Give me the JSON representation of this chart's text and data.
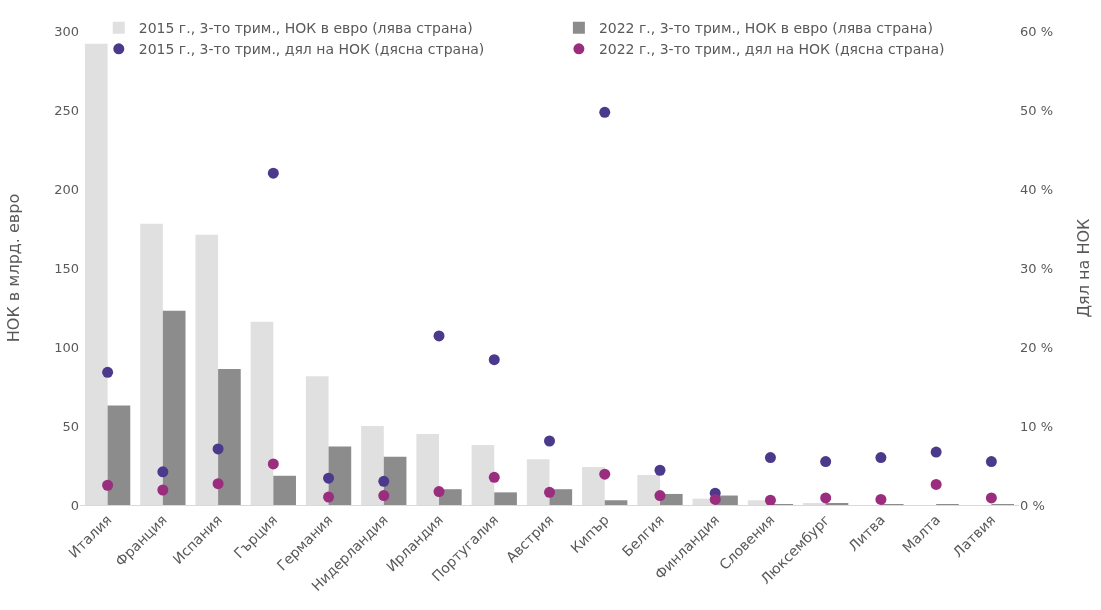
{
  "chart_data": {
    "type": "bar",
    "ylabel": "НОК в млрд. евро",
    "y2label": "Дял на НОК",
    "categories": [
      "Италия",
      "Франция",
      "Испания",
      "Гърция",
      "Германия",
      "Нидерландия",
      "Ирландия",
      "Португалия",
      "Австрия",
      "Кипър",
      "Белгия",
      "Финландия",
      "Словения",
      "Люксембург",
      "Литва",
      "Малта",
      "Латвия"
    ],
    "series": [
      {
        "name": "2015 г., 3-то трим., НОК в евро (лява страна)",
        "color": "#e0e0e0",
        "values": [
          292,
          178,
          171,
          116,
          81.5,
          50,
          45,
          38,
          29,
          24,
          19,
          4,
          3,
          1,
          null,
          null,
          null
        ]
      },
      {
        "name": "2022 г., 3-то трим., НОК в евро (лява страна)",
        "color": "#8c8c8c",
        "values": [
          63,
          123,
          86,
          18.5,
          37,
          30.5,
          10,
          8,
          10,
          3,
          7,
          6,
          0.5,
          1,
          0.2,
          0.5,
          0.2
        ]
      },
      {
        "name": "2015 г., 3-то трим., дял на НОК (дясна страна)",
        "type": "scatter",
        "axis": "y2",
        "color": "#4b3a8c",
        "values": [
          16.8,
          4.2,
          7.1,
          42,
          3.4,
          3,
          21.4,
          18.4,
          8.1,
          49.7,
          4.4,
          1.5,
          6,
          5.5,
          6,
          6.7,
          5.5
        ]
      },
      {
        "name": "2022 г., 3-то трим., дял на НОК (дясна страна)",
        "type": "scatter",
        "axis": "y2",
        "color": "#9b2d7f",
        "values": [
          2.5,
          1.9,
          2.7,
          5.2,
          1,
          1.2,
          1.7,
          3.5,
          1.6,
          3.9,
          1.2,
          0.7,
          0.6,
          0.9,
          0.7,
          2.6,
          0.9
        ]
      }
    ],
    "ylim": [
      0,
      300
    ],
    "yticks": [
      0,
      50,
      100,
      150,
      200,
      250,
      300
    ],
    "y2lim": [
      0,
      60
    ],
    "y2ticks": [
      {
        "value": 0,
        "label": "0 %"
      },
      {
        "value": 10,
        "label": "10 %"
      },
      {
        "value": 20,
        "label": "20 %"
      },
      {
        "value": 30,
        "label": "30 %"
      },
      {
        "value": 40,
        "label": "40 %"
      },
      {
        "value": 50,
        "label": "50 %"
      },
      {
        "value": 60,
        "label": "60 %"
      }
    ],
    "marker": "circle",
    "legend": "top",
    "grid": false
  }
}
